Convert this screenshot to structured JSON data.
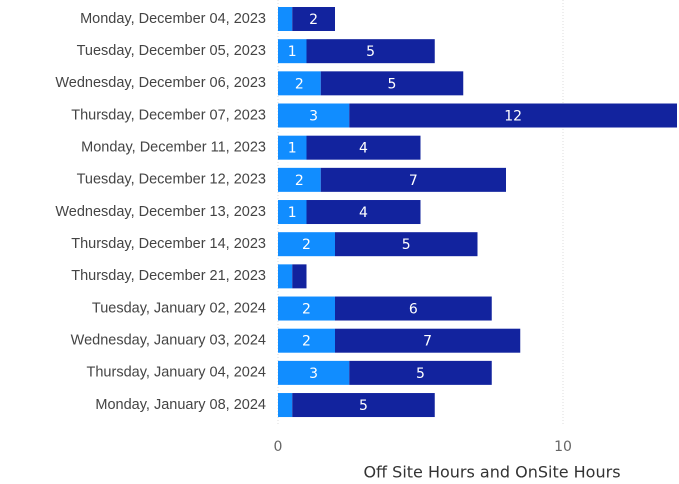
{
  "chart_data": {
    "type": "bar_stacked_horizontal",
    "x_label": "Off Site Hours and OnSite Hours",
    "categories": [
      "Monday, December 04, 2023",
      "Tuesday, December 05, 2023",
      "Wednesday, December 06, 2023",
      "Thursday, December 07, 2023",
      "Monday, December 11, 2023",
      "Tuesday, December 12, 2023",
      "Wednesday, December 13, 2023",
      "Thursday, December 14, 2023",
      "Thursday, December 21, 2023",
      "Tuesday, January 02, 2024",
      "Wednesday, January 03, 2024",
      "Thursday, January 04, 2024",
      "Monday, January 08, 2024"
    ],
    "series": [
      {
        "color": "#118DFF",
        "values": [
          0.5,
          1,
          1.5,
          2.5,
          1,
          1.5,
          1,
          2,
          0.5,
          2,
          2,
          2.5,
          0.5
        ],
        "value_labels": [
          null,
          "1",
          "2",
          "3",
          "1",
          "2",
          "1",
          "2",
          null,
          "2",
          "2",
          "3",
          null
        ]
      },
      {
        "color": "#12239E",
        "values": [
          1.5,
          4.5,
          5,
          11.5,
          4,
          6.5,
          4,
          5,
          0.5,
          5.5,
          6.5,
          5,
          5
        ],
        "value_labels": [
          "2",
          "5",
          "5",
          "12",
          "4",
          "7",
          "4",
          "5",
          null,
          "6",
          "7",
          "5",
          "5"
        ]
      }
    ],
    "xlim": [
      0,
      14
    ],
    "xticks": [
      0,
      10
    ],
    "grid": true
  }
}
